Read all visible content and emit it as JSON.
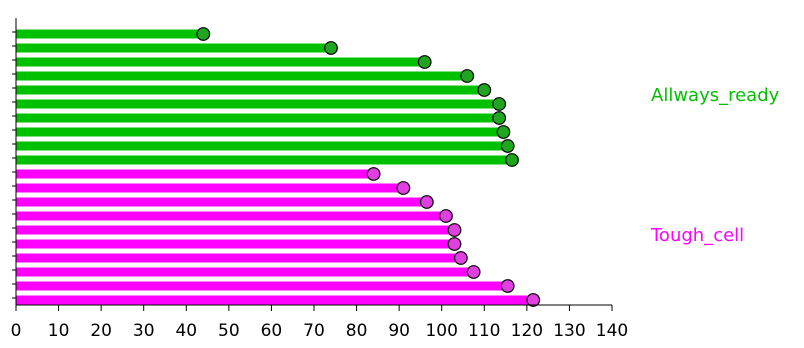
{
  "chart_data": {
    "type": "bar",
    "orientation": "horizontal",
    "style": "lollipop",
    "title": "",
    "xlabel": "",
    "ylabel": "",
    "xlim": [
      0,
      140
    ],
    "xticks": [
      0,
      10,
      20,
      30,
      40,
      50,
      60,
      70,
      80,
      90,
      100,
      110,
      120,
      130,
      140
    ],
    "grid": false,
    "legend_placement": "right",
    "series": [
      {
        "name": "Allways_ready",
        "color": "#00c000",
        "marker_color": "#1fa51f",
        "values": [
          44,
          74,
          96,
          106,
          110,
          113.5,
          113.5,
          114.5,
          115.5,
          116.5
        ]
      },
      {
        "name": "Tough_cell",
        "color": "#ff00ff",
        "marker_color": "#e040e0",
        "values": [
          84,
          91,
          96.5,
          101,
          103,
          103,
          104.5,
          107.5,
          115.5,
          121.5
        ]
      }
    ]
  }
}
